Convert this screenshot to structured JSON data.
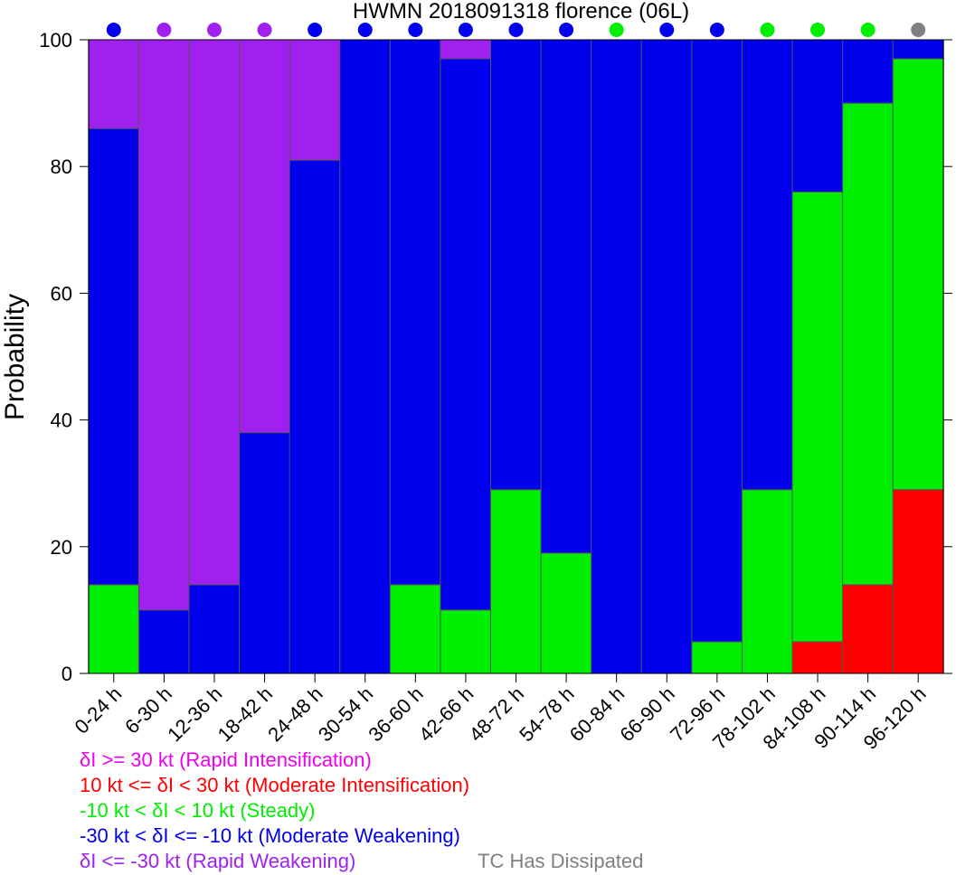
{
  "chart_data": {
    "type": "bar",
    "stacked": true,
    "title": "HWMN 2018091318 florence (06L)",
    "ylabel": "Probability",
    "ylim": [
      0,
      100
    ],
    "yticks": [
      0,
      20,
      40,
      60,
      80,
      100
    ],
    "categories": [
      "0-24 h",
      "6-30 h",
      "12-36 h",
      "18-42 h",
      "24-48 h",
      "30-54 h",
      "36-60 h",
      "42-66 h",
      "48-72 h",
      "54-78 h",
      "60-84 h",
      "66-90 h",
      "72-96 h",
      "78-102 h",
      "84-108 h",
      "90-114 h",
      "96-120 h"
    ],
    "series": [
      {
        "key": "moderate_intensification",
        "color": "#ff0000",
        "values": [
          0,
          0,
          0,
          0,
          0,
          0,
          0,
          0,
          0,
          0,
          0,
          0,
          0,
          0,
          5,
          14,
          29
        ]
      },
      {
        "key": "steady",
        "color": "#00ee00",
        "values": [
          14,
          0,
          0,
          0,
          0,
          0,
          14,
          10,
          29,
          19,
          0,
          0,
          5,
          29,
          71,
          76,
          68
        ]
      },
      {
        "key": "moderate_weakening",
        "color": "#0000ee",
        "values": [
          72,
          10,
          14,
          38,
          81,
          100,
          86,
          87,
          71,
          81,
          100,
          100,
          95,
          71,
          24,
          10,
          3
        ]
      },
      {
        "key": "rapid_weakening",
        "color": "#a020f0",
        "values": [
          14,
          90,
          86,
          62,
          19,
          0,
          0,
          3,
          0,
          0,
          0,
          0,
          0,
          0,
          0,
          0,
          0
        ]
      }
    ],
    "most_likely_markers": [
      "moderate_weakening",
      "rapid_weakening",
      "rapid_weakening",
      "rapid_weakening",
      "moderate_weakening",
      "moderate_weakening",
      "moderate_weakening",
      "moderate_weakening",
      "moderate_weakening",
      "moderate_weakening",
      "steady",
      "moderate_weakening",
      "moderate_weakening",
      "steady",
      "steady",
      "steady",
      "dissipated"
    ],
    "marker_colors": {
      "rapid_intensification": "#ee00ee",
      "moderate_intensification": "#ff0000",
      "steady": "#00ee00",
      "moderate_weakening": "#0000ee",
      "rapid_weakening": "#a020f0",
      "dissipated": "#808080"
    },
    "legend": [
      {
        "label": "δI >= 30 kt (Rapid Intensification)",
        "color": "#ee00ee"
      },
      {
        "label": "10 kt <= δI < 30 kt (Moderate Intensification)",
        "color": "#ff0000"
      },
      {
        "label": "-10 kt < δI < 10 kt (Steady)",
        "color": "#00ee00"
      },
      {
        "label": "-30 kt < δI <= -10 kt (Moderate Weakening)",
        "color": "#0000ee"
      },
      {
        "label": "δI <= -30 kt (Rapid Weakening)",
        "color": "#a020f0"
      },
      {
        "label": "TC Has Dissipated",
        "color": "#808080"
      }
    ],
    "legend_placement": "bottom-left"
  }
}
